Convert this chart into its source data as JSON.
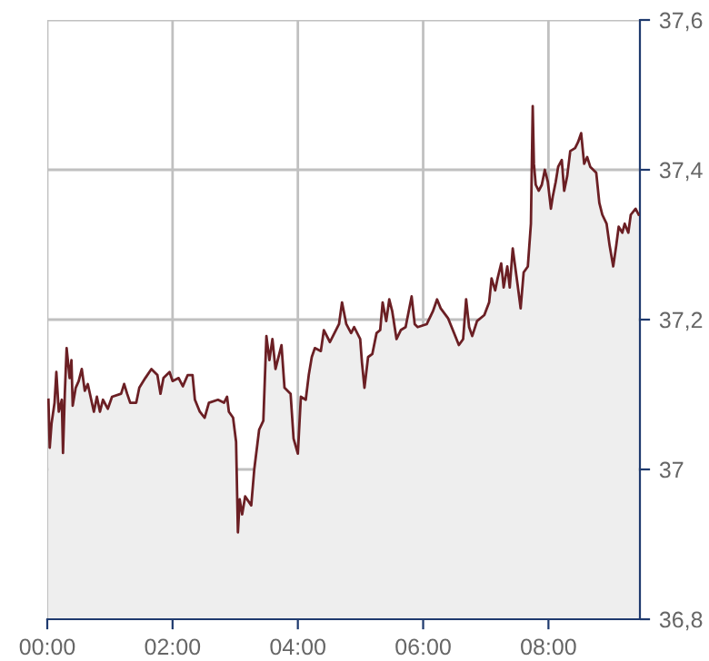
{
  "chart_data": {
    "type": "area",
    "color": "#6b1f24",
    "grid": true,
    "x": [
      0.019,
      0.039,
      0.068,
      0.116,
      0.145,
      0.184,
      0.232,
      0.251,
      0.28,
      0.309,
      0.357,
      0.386,
      0.406,
      0.454,
      0.502,
      0.551,
      0.599,
      0.647,
      0.744,
      0.792,
      0.841,
      0.889,
      0.966,
      1.034,
      1.179,
      1.227,
      1.275,
      1.324,
      1.42,
      1.469,
      1.565,
      1.662,
      1.758,
      1.807,
      1.855,
      1.952,
      2.0,
      2.097,
      2.164,
      2.242,
      2.319,
      2.357,
      2.435,
      2.512,
      2.58,
      2.725,
      2.821,
      2.87,
      2.899,
      2.966,
      3.014,
      3.043,
      3.072,
      3.111,
      3.159,
      3.256,
      3.304,
      3.382,
      3.449,
      3.498,
      3.546,
      3.594,
      3.643,
      3.739,
      3.787,
      3.884,
      3.932,
      4.0,
      4.048,
      4.126,
      4.174,
      4.222,
      4.271,
      4.367,
      4.415,
      4.512,
      4.56,
      4.657,
      4.705,
      4.773,
      4.85,
      4.899,
      4.995,
      5.024,
      5.063,
      5.121,
      5.188,
      5.256,
      5.314,
      5.353,
      5.411,
      5.459,
      5.507,
      5.575,
      5.643,
      5.72,
      5.816,
      5.865,
      5.913,
      6.058,
      6.155,
      6.222,
      6.28,
      6.396,
      6.493,
      6.57,
      6.638,
      6.686,
      6.734,
      6.783,
      6.86,
      6.976,
      7.053,
      7.092,
      7.15,
      7.188,
      7.246,
      7.285,
      7.343,
      7.382,
      7.43,
      7.507,
      7.556,
      7.604,
      7.671,
      7.72,
      7.749,
      7.768,
      7.797,
      7.845,
      7.894,
      7.942,
      7.99,
      8.039,
      8.068,
      8.116,
      8.155,
      8.213,
      8.251,
      8.3,
      8.348,
      8.425,
      8.473,
      8.522,
      8.57,
      8.618,
      8.667,
      8.763,
      8.812,
      8.86,
      8.928,
      8.976,
      9.034,
      9.082,
      9.121,
      9.179,
      9.217,
      9.275,
      9.314,
      9.391,
      9.44
    ],
    "values": [
      37.093,
      37.029,
      37.061,
      37.089,
      37.13,
      37.077,
      37.093,
      37.022,
      37.101,
      37.162,
      37.122,
      37.146,
      37.085,
      37.109,
      37.118,
      37.134,
      37.105,
      37.114,
      37.077,
      37.097,
      37.077,
      37.093,
      37.081,
      37.097,
      37.101,
      37.114,
      37.101,
      37.089,
      37.089,
      37.109,
      37.122,
      37.134,
      37.126,
      37.101,
      37.122,
      37.13,
      37.118,
      37.122,
      37.111,
      37.126,
      37.126,
      37.093,
      37.077,
      37.069,
      37.089,
      37.093,
      37.089,
      37.097,
      37.077,
      37.069,
      37.037,
      36.916,
      36.96,
      36.94,
      36.964,
      36.952,
      37.0,
      37.053,
      37.065,
      37.178,
      37.146,
      37.174,
      37.134,
      37.166,
      37.109,
      37.101,
      37.041,
      37.021,
      37.097,
      37.093,
      37.126,
      37.15,
      37.162,
      37.158,
      37.186,
      37.17,
      37.178,
      37.194,
      37.223,
      37.194,
      37.182,
      37.19,
      37.174,
      37.142,
      37.109,
      37.15,
      37.154,
      37.182,
      37.186,
      37.223,
      37.198,
      37.227,
      37.211,
      37.174,
      37.186,
      37.19,
      37.231,
      37.194,
      37.19,
      37.194,
      37.211,
      37.227,
      37.215,
      37.202,
      37.182,
      37.166,
      37.174,
      37.227,
      37.19,
      37.178,
      37.198,
      37.206,
      37.223,
      37.255,
      37.239,
      37.255,
      37.275,
      37.243,
      37.271,
      37.243,
      37.295,
      37.247,
      37.215,
      37.263,
      37.271,
      37.328,
      37.485,
      37.408,
      37.38,
      37.372,
      37.38,
      37.4,
      37.384,
      37.348,
      37.364,
      37.384,
      37.404,
      37.413,
      37.372,
      37.392,
      37.425,
      37.429,
      37.437,
      37.449,
      37.408,
      37.417,
      37.404,
      37.396,
      37.356,
      37.34,
      37.328,
      37.299,
      37.271,
      37.299,
      37.324,
      37.316,
      37.328,
      37.316,
      37.34,
      37.348,
      37.34
    ],
    "xlim": [
      0,
      9.46
    ],
    "xticks": [
      {
        "value": 0,
        "label": "00:00"
      },
      {
        "value": 2,
        "label": "02:00"
      },
      {
        "value": 4,
        "label": "04:00"
      },
      {
        "value": 6,
        "label": "06:00"
      },
      {
        "value": 8,
        "label": "08:00"
      }
    ],
    "ylim": [
      36.8,
      37.6
    ],
    "yticks": [
      {
        "value": 36.8,
        "label": "36,8"
      },
      {
        "value": 37.0,
        "label": "37"
      },
      {
        "value": 37.2,
        "label": "37,2"
      },
      {
        "value": 37.4,
        "label": "37,4"
      },
      {
        "value": 37.6,
        "label": "37,6"
      }
    ]
  }
}
